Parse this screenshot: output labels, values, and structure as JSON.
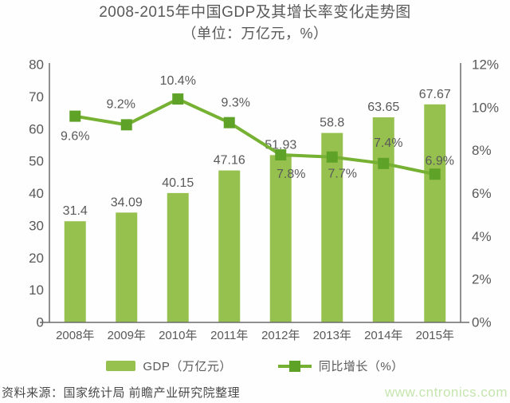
{
  "title": {
    "line1": "2008-2015年中国GDP及其增长率变化走势图",
    "line2": "（单位：万亿元，%）"
  },
  "legend": {
    "gdp_label": "GDP（万亿元）",
    "growth_label": "同比增长（%）"
  },
  "footer": {
    "source": "资料来源：国家统计局 前瞻产业研究院整理",
    "watermark": "www.cntronics.com"
  },
  "colors": {
    "bar": "#97C14E",
    "line": "#76B133",
    "marker": "#5FA228",
    "axis": "#6b6b6b",
    "label_text": "#595959",
    "watermark": "#C5E5AE"
  },
  "chart_data": {
    "type": "bar+line",
    "title": "2008-2015年中国GDP及其增长率变化走势图",
    "subtitle": "（单位：万亿元，%）",
    "categories": [
      "2008年",
      "2009年",
      "2010年",
      "2011年",
      "2012年",
      "2013年",
      "2014年",
      "2015年"
    ],
    "series": [
      {
        "name": "GDP（万亿元）",
        "type": "bar",
        "axis": "left",
        "values": [
          31.4,
          34.09,
          40.15,
          47.16,
          51.93,
          58.8,
          63.65,
          67.67
        ],
        "labels": [
          "31.4",
          "34.09",
          "40.15",
          "47.16",
          "51.93",
          "58.8",
          "63.65",
          "67.67"
        ]
      },
      {
        "name": "同比增长（%）",
        "type": "line",
        "axis": "right",
        "values": [
          9.6,
          9.2,
          10.4,
          9.3,
          7.8,
          7.7,
          7.4,
          6.9
        ],
        "labels": [
          "9.6%",
          "9.2%",
          "10.4%",
          "9.3%",
          "7.8%",
          "7.7%",
          "7.4%",
          "6.9%"
        ]
      }
    ],
    "left_axis": {
      "min": 0,
      "max": 80,
      "step": 10,
      "suffix": "",
      "ticks": [
        "0",
        "10",
        "20",
        "30",
        "40",
        "50",
        "60",
        "70",
        "80"
      ]
    },
    "right_axis": {
      "min": 0,
      "max": 12,
      "step": 2,
      "suffix": "%",
      "ticks": [
        "0%",
        "2%",
        "4%",
        "6%",
        "8%",
        "10%",
        "12%"
      ]
    },
    "grid": false,
    "legend_position": "bottom"
  }
}
